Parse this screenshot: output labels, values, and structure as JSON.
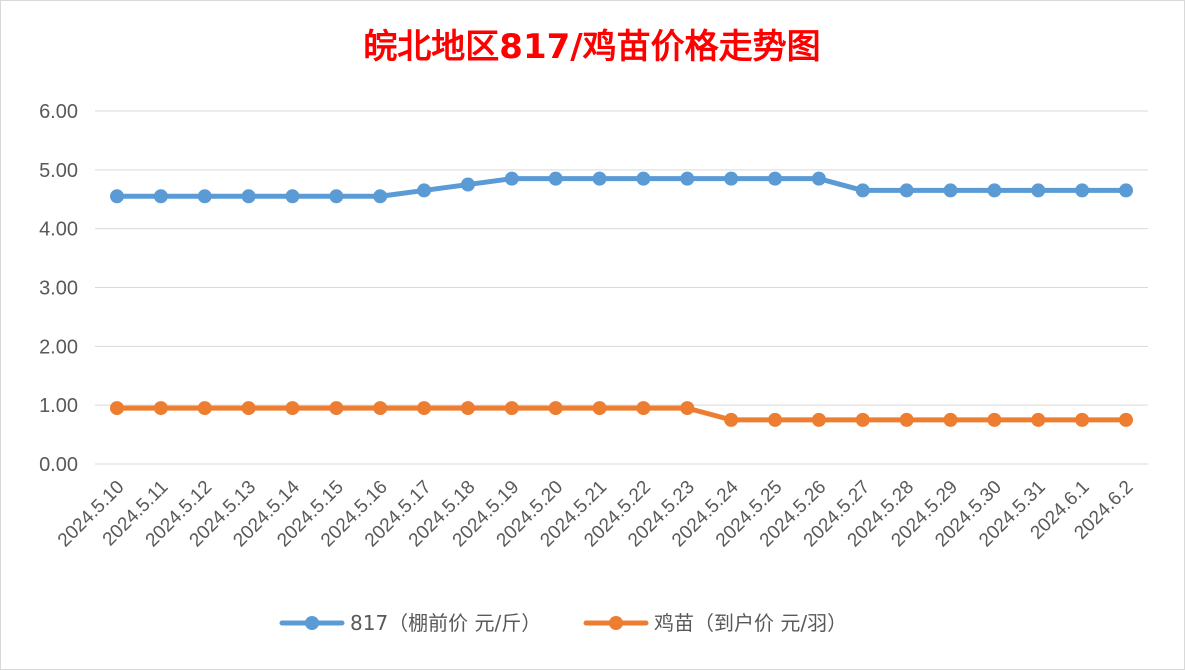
{
  "colors": {
    "title": "#ff0000",
    "series_817": "#5b9bd5",
    "series_chick": "#ed7d31",
    "grid": "#d9d9d9",
    "text": "#595959"
  },
  "chart_data": {
    "type": "line",
    "title": "皖北地区817/鸡苗价格走势图",
    "xlabel": "",
    "ylabel": "",
    "ylim": [
      0,
      6
    ],
    "yticks": [
      "0.00",
      "1.00",
      "2.00",
      "3.00",
      "4.00",
      "5.00",
      "6.00"
    ],
    "grid": "horizontal",
    "legend_position": "bottom",
    "categories": [
      "2024.5.10",
      "2024.5.11",
      "2024.5.12",
      "2024.5.13",
      "2024.5.14",
      "2024.5.15",
      "2024.5.16",
      "2024.5.17",
      "2024.5.18",
      "2024.5.19",
      "2024.5.20",
      "2024.5.21",
      "2024.5.22",
      "2024.5.23",
      "2024.5.24",
      "2024.5.25",
      "2024.5.26",
      "2024.5.27",
      "2024.5.28",
      "2024.5.29",
      "2024.5.30",
      "2024.5.31",
      "2024.6.1",
      "2024.6.2"
    ],
    "series": [
      {
        "name": "817（棚前价 元/斤）",
        "color": "#5b9bd5",
        "values": [
          4.55,
          4.55,
          4.55,
          4.55,
          4.55,
          4.55,
          4.55,
          4.65,
          4.75,
          4.85,
          4.85,
          4.85,
          4.85,
          4.85,
          4.85,
          4.85,
          4.85,
          4.65,
          4.65,
          4.65,
          4.65,
          4.65,
          4.65,
          4.65
        ]
      },
      {
        "name": "鸡苗（到户价 元/羽）",
        "color": "#ed7d31",
        "values": [
          0.95,
          0.95,
          0.95,
          0.95,
          0.95,
          0.95,
          0.95,
          0.95,
          0.95,
          0.95,
          0.95,
          0.95,
          0.95,
          0.95,
          0.75,
          0.75,
          0.75,
          0.75,
          0.75,
          0.75,
          0.75,
          0.75,
          0.75,
          0.75
        ]
      }
    ]
  }
}
